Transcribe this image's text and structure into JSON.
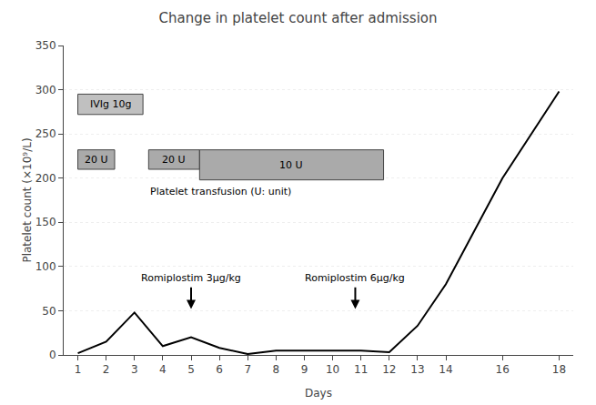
{
  "chart_data": {
    "type": "line",
    "title": "Change in platelet count after admission",
    "xlabel": "Days",
    "ylabel": "Platelet count (×10⁹/L)",
    "x": [
      1,
      2,
      3,
      4,
      5,
      6,
      7,
      8,
      9,
      10,
      11,
      12,
      13,
      14,
      16,
      18
    ],
    "values": [
      2,
      15,
      48,
      10,
      20,
      8,
      1,
      5,
      5,
      5,
      5,
      3,
      33,
      80,
      200,
      298
    ],
    "color": "#000000",
    "xlim": [
      0.5,
      18.5
    ],
    "xticks": [
      1,
      2,
      3,
      4,
      5,
      6,
      7,
      8,
      9,
      10,
      11,
      12,
      13,
      14,
      16,
      18
    ],
    "ylim": [
      0,
      350
    ],
    "yticks": [
      0,
      50,
      100,
      150,
      200,
      250,
      300,
      350
    ],
    "grid": "y",
    "boxes": [
      {
        "text": "IVIg 10g",
        "x": [
          1.0,
          3.3
        ],
        "y": [
          272,
          295
        ],
        "color": "#c0c0c0"
      },
      {
        "text": "20 U",
        "x": [
          1.0,
          2.3
        ],
        "y": [
          210,
          232
        ],
        "color": "#aaaaaa"
      },
      {
        "text": "20 U",
        "x": [
          3.5,
          5.3
        ],
        "y": [
          210,
          232
        ],
        "color": "#aaaaaa"
      },
      {
        "text": "10 U",
        "x": [
          5.3,
          11.8
        ],
        "y": [
          198,
          232
        ],
        "color": "#aaaaaa"
      }
    ],
    "annotations": [
      {
        "text": "Platelet transfusion (U: unit)",
        "x": 3.5,
        "y": 185
      },
      {
        "text": "Romiplostim 3μg/kg",
        "x": 5,
        "y": 78,
        "arrow_y": 52
      },
      {
        "text": "Romiplostim 6μg/kg",
        "x": 10.8,
        "y": 78,
        "arrow_y": 52
      }
    ]
  }
}
